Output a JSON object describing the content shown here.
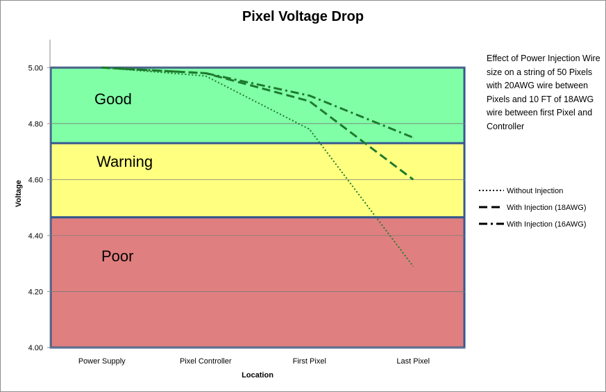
{
  "chart_data": {
    "type": "line",
    "title": "Pixel Voltage Drop",
    "xlabel": "Location",
    "ylabel": "Voltage",
    "categories": [
      "Power Supply",
      "Pixel Controller",
      "First Pixel",
      "Last Pixel"
    ],
    "ylim": [
      4.0,
      5.1
    ],
    "yticks": [
      "4.00",
      "4.20",
      "4.40",
      "4.60",
      "4.80",
      "5.00"
    ],
    "grid": true,
    "legend_position": "right",
    "series": [
      {
        "name": "Without Injection",
        "values": [
          5.0,
          4.97,
          4.78,
          4.29
        ],
        "dash": "dot"
      },
      {
        "name": "With Injection (18AWG)",
        "values": [
          5.0,
          4.98,
          4.88,
          4.6
        ],
        "dash": "dash"
      },
      {
        "name": "With Injection (16AWG)",
        "values": [
          5.0,
          4.98,
          4.9,
          4.75
        ],
        "dash": "dashdot"
      }
    ],
    "zones": [
      {
        "label": "Good",
        "from": 4.73,
        "to": 5.0,
        "color": "#80ffa6"
      },
      {
        "label": "Warning",
        "from": 4.465,
        "to": 4.73,
        "color": "#ffff80"
      },
      {
        "label": "Poor",
        "from": 4.0,
        "to": 4.465,
        "color": "#e07f7f"
      }
    ],
    "annotation": "Effect of Power Injection Wire size  on a string of 50 Pixels  with 20AWG wire between Pixels and 10 FT of 18AWG wire between first Pixel and Controller"
  }
}
